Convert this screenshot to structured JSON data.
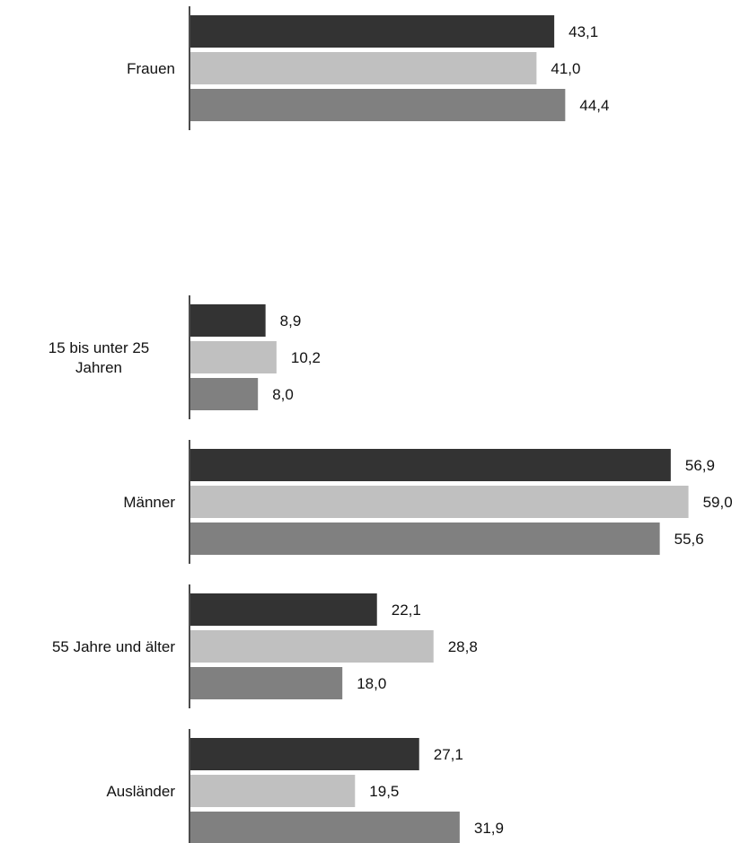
{
  "chart_data": {
    "type": "bar",
    "orientation": "horizontal",
    "categories": [
      "Frauen",
      "15 bis unter 25 Jahren",
      "Männer",
      "55 Jahre und älter",
      "Ausländer"
    ],
    "category_label_lines": [
      [
        "Frauen"
      ],
      [
        "15 bis unter 25",
        "Jahren"
      ],
      [
        "Männer"
      ],
      [
        "55 Jahre und älter"
      ],
      [
        "Ausländer"
      ]
    ],
    "series": [
      {
        "values": [
          43.1,
          8.9,
          56.9,
          22.1,
          27.1
        ],
        "labels": [
          "43,1",
          "8,9",
          "56,9",
          "22,1",
          "27,1"
        ],
        "color": "#333333"
      },
      {
        "values": [
          41.0,
          10.2,
          59.0,
          28.8,
          19.5
        ],
        "labels": [
          "41,0",
          "10,2",
          "59,0",
          "28,8",
          "19,5"
        ],
        "color": "#c0c0c0"
      },
      {
        "values": [
          44.4,
          8.0,
          55.6,
          18.0,
          31.9
        ],
        "labels": [
          "44,4",
          "8,0",
          "55,6",
          "18,0",
          "31,9"
        ],
        "color": "#808080"
      }
    ],
    "title": "",
    "xlabel": "",
    "ylabel": "",
    "xlim": [
      0,
      59
    ],
    "grid": false,
    "legend": "none"
  }
}
